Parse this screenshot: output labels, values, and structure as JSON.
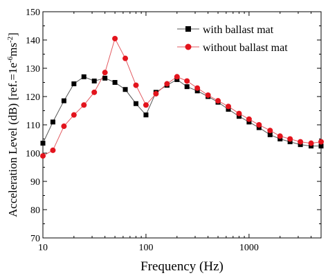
{
  "chart_data": {
    "type": "line",
    "xlabel": "Frequency (Hz)",
    "ylabel_main": "Acceleration Level (dB) [ref.=1e",
    "ylabel_sup": "-6",
    "ylabel_mid": "ms",
    "ylabel_sup2": "-2",
    "ylabel_end": "]",
    "x_scale": "log",
    "xlim": [
      10,
      5000
    ],
    "ylim": [
      70,
      150
    ],
    "x_ticks": [
      10,
      100,
      1000
    ],
    "x_tick_labels": [
      "10",
      "100",
      "1000"
    ],
    "y_ticks": [
      70,
      80,
      90,
      100,
      110,
      120,
      130,
      140,
      150
    ],
    "y_tick_labels": [
      "70",
      "80",
      "90",
      "100",
      "110",
      "120",
      "130",
      "140",
      "150"
    ],
    "legend_position": "top-right",
    "grid": false,
    "x": [
      10,
      12.5,
      16,
      20,
      25,
      31.5,
      40,
      50,
      63,
      80,
      100,
      125,
      160,
      200,
      250,
      315,
      400,
      500,
      630,
      800,
      1000,
      1250,
      1600,
      2000,
      2500,
      3150,
      4000,
      5000
    ],
    "series": [
      {
        "name": "with ballast mat",
        "marker": "square",
        "color": "#000000",
        "line_color": "#555555",
        "values": [
          103.5,
          111.0,
          118.5,
          124.5,
          127.0,
          125.5,
          126.5,
          125.0,
          122.5,
          117.5,
          113.5,
          121.5,
          124.0,
          126.0,
          123.5,
          122.0,
          120.0,
          118.0,
          115.5,
          113.0,
          111.0,
          109.0,
          106.5,
          105.0,
          104.0,
          103.0,
          102.5,
          102.5
        ]
      },
      {
        "name": "without ballast mat",
        "marker": "circle",
        "color": "#e3141d",
        "line_color": "#e35a60",
        "values": [
          99.0,
          101.0,
          109.5,
          113.5,
          117.0,
          121.5,
          128.5,
          140.5,
          133.5,
          124.0,
          117.0,
          121.0,
          124.5,
          127.0,
          125.5,
          123.0,
          120.5,
          118.5,
          116.5,
          114.0,
          112.0,
          110.0,
          108.0,
          106.0,
          105.0,
          104.0,
          103.5,
          104.0
        ]
      }
    ]
  }
}
